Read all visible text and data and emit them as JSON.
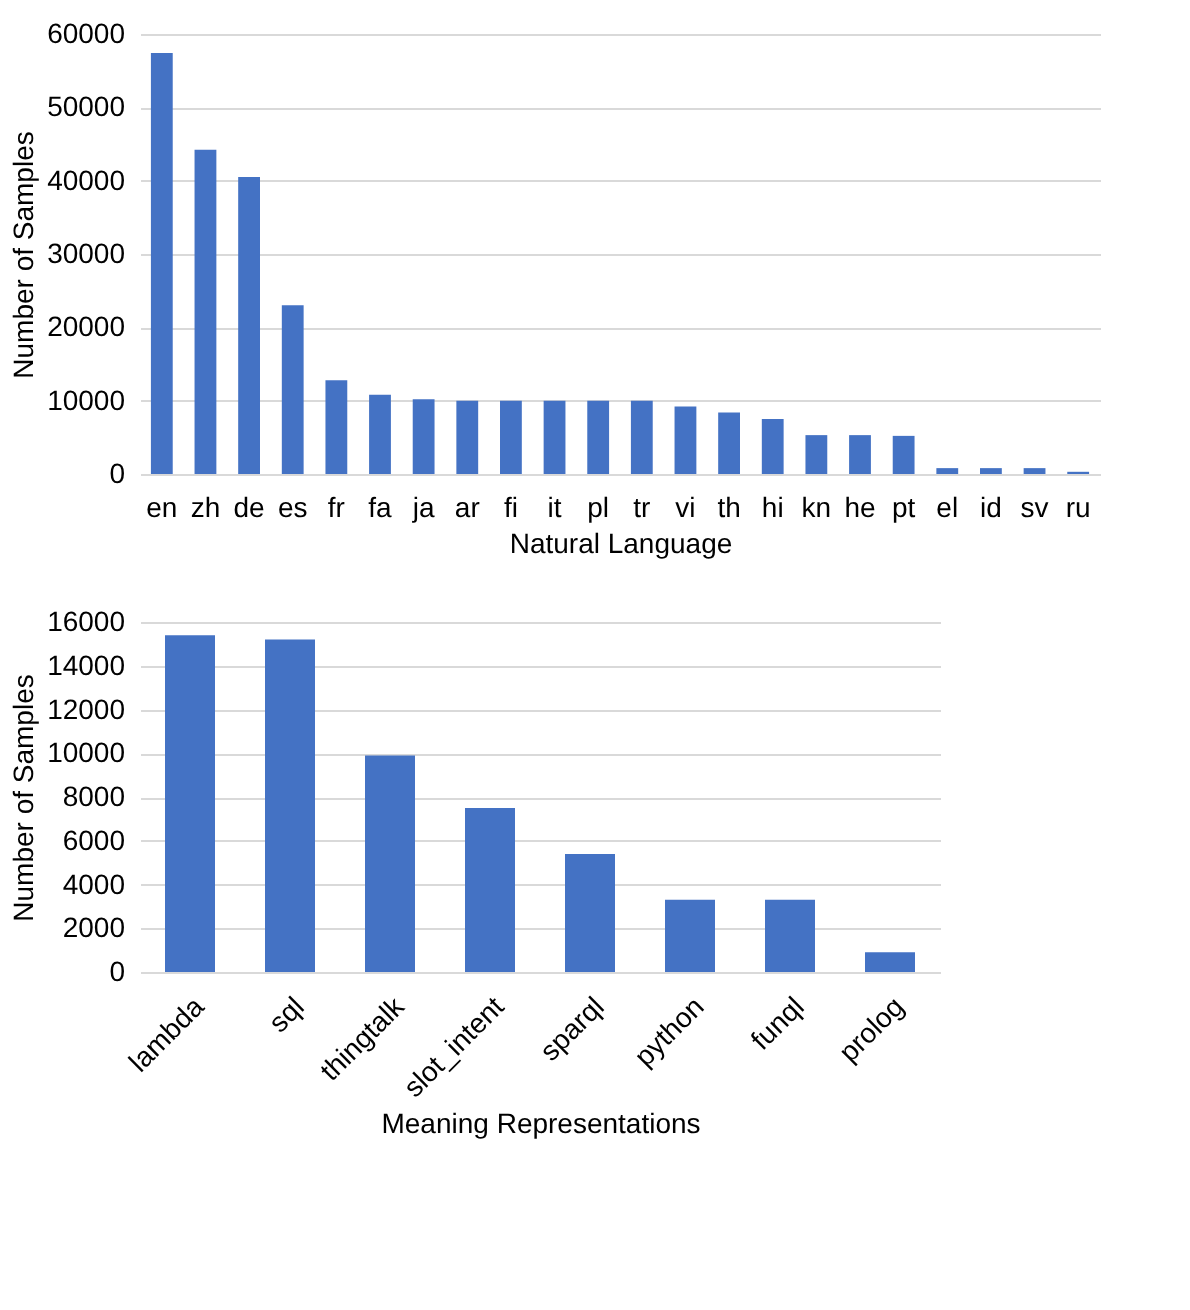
{
  "chart_data": [
    {
      "type": "bar",
      "xlabel": "Natural Language",
      "ylabel": "Number of Samples",
      "categories": [
        "en",
        "zh",
        "de",
        "es",
        "fr",
        "fa",
        "ja",
        "ar",
        "fi",
        "it",
        "pl",
        "tr",
        "vi",
        "th",
        "hi",
        "kn",
        "he",
        "pt",
        "el",
        "id",
        "sv",
        "ru"
      ],
      "values": [
        57400,
        44200,
        40500,
        23000,
        12800,
        10800,
        10200,
        10000,
        10000,
        10000,
        10000,
        10000,
        9200,
        8400,
        7500,
        5300,
        5300,
        5200,
        800,
        800,
        800,
        300
      ],
      "color": "#4472c4",
      "ylim": [
        0,
        60000
      ],
      "yticks": [
        0,
        10000,
        20000,
        30000,
        40000,
        50000,
        60000
      ],
      "grid": "y"
    },
    {
      "type": "bar",
      "xlabel": "Meaning Representations",
      "ylabel": "Number of Samples",
      "categories": [
        "lambda",
        "sql",
        "thingtalk",
        "slot_intent",
        "sparql",
        "python",
        "funql",
        "prolog"
      ],
      "values": [
        15400,
        15200,
        9900,
        7500,
        5400,
        3300,
        3300,
        900
      ],
      "color": "#4472c4",
      "ylim": [
        0,
        16000
      ],
      "yticks": [
        0,
        2000,
        4000,
        6000,
        8000,
        10000,
        12000,
        14000,
        16000
      ],
      "grid": "y"
    }
  ]
}
